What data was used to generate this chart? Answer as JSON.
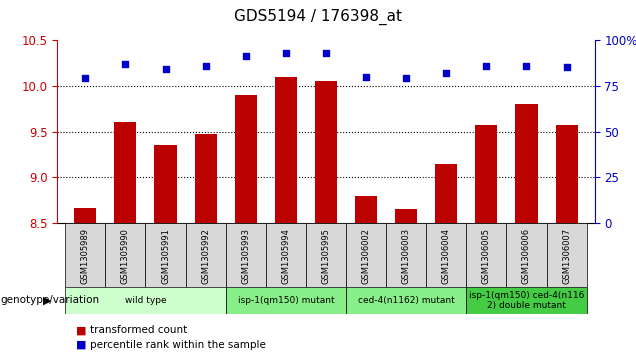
{
  "title": "GDS5194 / 176398_at",
  "samples": [
    "GSM1305989",
    "GSM1305990",
    "GSM1305991",
    "GSM1305992",
    "GSM1305993",
    "GSM1305994",
    "GSM1305995",
    "GSM1306002",
    "GSM1306003",
    "GSM1306004",
    "GSM1306005",
    "GSM1306006",
    "GSM1306007"
  ],
  "bar_values": [
    8.67,
    9.6,
    9.35,
    9.47,
    9.9,
    10.1,
    10.05,
    8.8,
    8.65,
    9.15,
    9.57,
    9.8,
    9.57
  ],
  "percentile_values": [
    79,
    87,
    84,
    86,
    91,
    93,
    93,
    80,
    79,
    82,
    86,
    86,
    85
  ],
  "bar_color": "#bb0000",
  "dot_color": "#0000cc",
  "ylim_left": [
    8.5,
    10.5
  ],
  "ylim_right": [
    0,
    100
  ],
  "yticks_left": [
    8.5,
    9.0,
    9.5,
    10.0,
    10.5
  ],
  "yticks_right": [
    0,
    25,
    50,
    75,
    100
  ],
  "ytick_labels_right": [
    "0",
    "25",
    "50",
    "75",
    "100%"
  ],
  "grid_lines": [
    9.0,
    9.5,
    10.0
  ],
  "bar_bottom": 8.5,
  "groups": [
    {
      "label": "wild type",
      "start": 0,
      "end": 4,
      "color": "#ccffcc"
    },
    {
      "label": "isp-1(qm150) mutant",
      "start": 4,
      "end": 7,
      "color": "#88ee88"
    },
    {
      "label": "ced-4(n1162) mutant",
      "start": 7,
      "end": 10,
      "color": "#88ee88"
    },
    {
      "label": "isp-1(qm150) ced-4(n116\n2) double mutant",
      "start": 10,
      "end": 13,
      "color": "#44cc44"
    }
  ],
  "genotype_label": "genotype/variation",
  "legend_bar_label": "transformed count",
  "legend_dot_label": "percentile rank within the sample",
  "title_fontsize": 11,
  "axis_color_left": "#cc0000",
  "axis_color_right": "#0000cc",
  "sample_bg_color": "#d8d8d8",
  "plot_bg_color": "#ffffff"
}
